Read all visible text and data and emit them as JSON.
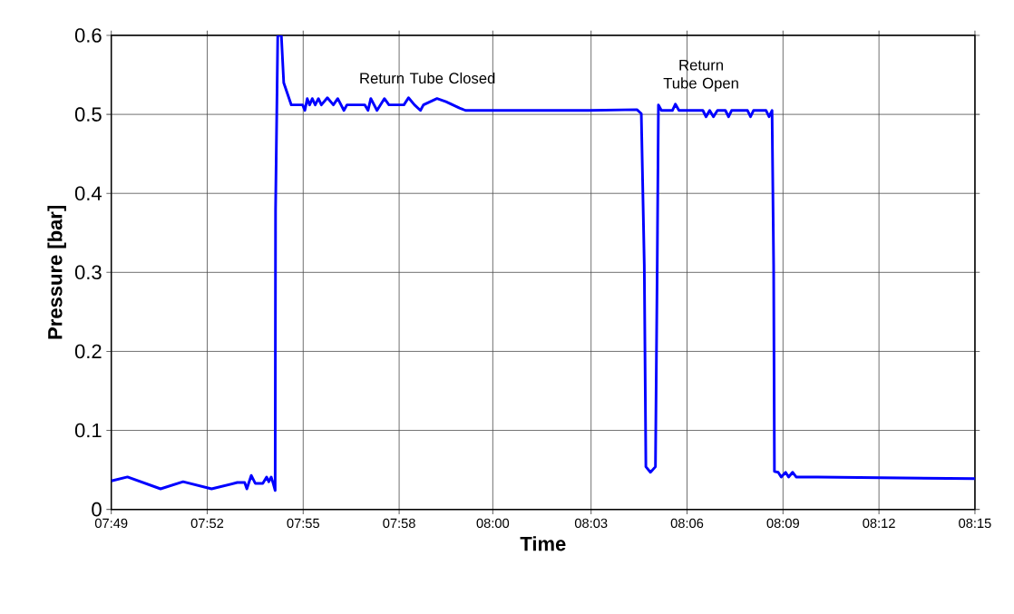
{
  "chart_data": {
    "type": "line",
    "xlabel": "Time",
    "ylabel": "Pressure [bar]",
    "xlim": [
      7.816667,
      8.25
    ],
    "ylim": [
      0,
      0.6
    ],
    "xticks": [
      {
        "value": 7.816667,
        "label": "07:49"
      },
      {
        "value": 7.864815,
        "label": "07:52"
      },
      {
        "value": 7.912963,
        "label": "07:55"
      },
      {
        "value": 7.961111,
        "label": "07:58"
      },
      {
        "value": 8.0081,
        "label": "08:00"
      },
      {
        "value": 8.057407,
        "label": "08:03"
      },
      {
        "value": 8.105556,
        "label": "08:06"
      },
      {
        "value": 8.153704,
        "label": "08:09"
      },
      {
        "value": 8.201852,
        "label": "08:12"
      },
      {
        "value": 8.25,
        "label": "08:15"
      }
    ],
    "yticks": [
      0,
      0.1,
      0.2,
      0.3,
      0.4,
      0.5,
      0.6
    ],
    "grid": true,
    "marker": "none",
    "line_style": "solid",
    "annotations": [
      "Return Tube Closed",
      "Return Tube Open"
    ],
    "series": [
      {
        "color": "#0000ff",
        "x": [
          7.8167,
          7.8248,
          7.8414,
          7.8527,
          7.867,
          7.8799,
          7.8836,
          7.8847,
          7.8869,
          7.8889,
          7.8927,
          7.8946,
          7.8957,
          7.8969,
          7.8979,
          7.8989,
          7.8991,
          7.9002,
          7.902,
          7.9032,
          7.907,
          7.9127,
          7.9138,
          7.915,
          7.9162,
          7.9175,
          7.919,
          7.9206,
          7.9221,
          7.9251,
          7.9281,
          7.9303,
          7.9334,
          7.9349,
          7.9439,
          7.9455,
          7.9469,
          7.95,
          7.9537,
          7.956,
          7.9635,
          7.9658,
          7.9688,
          7.9718,
          7.9733,
          7.9801,
          7.9846,
          7.9914,
          7.9944,
          8.0563,
          8.0804,
          8.0826,
          8.0841,
          8.0849,
          8.0872,
          8.0897,
          8.0906,
          8.0912,
          8.0927,
          8.0982,
          8.0997,
          8.1015,
          8.1135,
          8.1151,
          8.1169,
          8.1188,
          8.1208,
          8.1248,
          8.1264,
          8.1279,
          8.1359,
          8.1374,
          8.1389,
          8.1452,
          8.1467,
          8.1482,
          8.149,
          8.1494,
          8.1513,
          8.1528,
          8.155,
          8.1565,
          8.1585,
          8.1603,
          8.1709,
          8.2025,
          8.25
        ],
        "values": [
          0.036,
          0.041,
          0.026,
          0.035,
          0.026,
          0.034,
          0.034,
          0.026,
          0.043,
          0.033,
          0.033,
          0.041,
          0.035,
          0.041,
          0.033,
          0.024,
          0.38,
          0.6,
          0.6,
          0.54,
          0.512,
          0.512,
          0.505,
          0.52,
          0.512,
          0.52,
          0.512,
          0.52,
          0.512,
          0.521,
          0.512,
          0.52,
          0.505,
          0.512,
          0.512,
          0.505,
          0.52,
          0.505,
          0.52,
          0.512,
          0.512,
          0.521,
          0.512,
          0.505,
          0.512,
          0.52,
          0.516,
          0.508,
          0.505,
          0.505,
          0.506,
          0.501,
          0.31,
          0.054,
          0.047,
          0.054,
          0.31,
          0.512,
          0.505,
          0.505,
          0.513,
          0.505,
          0.505,
          0.497,
          0.505,
          0.497,
          0.505,
          0.505,
          0.497,
          0.505,
          0.505,
          0.497,
          0.505,
          0.505,
          0.497,
          0.505,
          0.31,
          0.048,
          0.047,
          0.041,
          0.047,
          0.041,
          0.047,
          0.041,
          0.041,
          0.04,
          0.039
        ]
      }
    ]
  }
}
